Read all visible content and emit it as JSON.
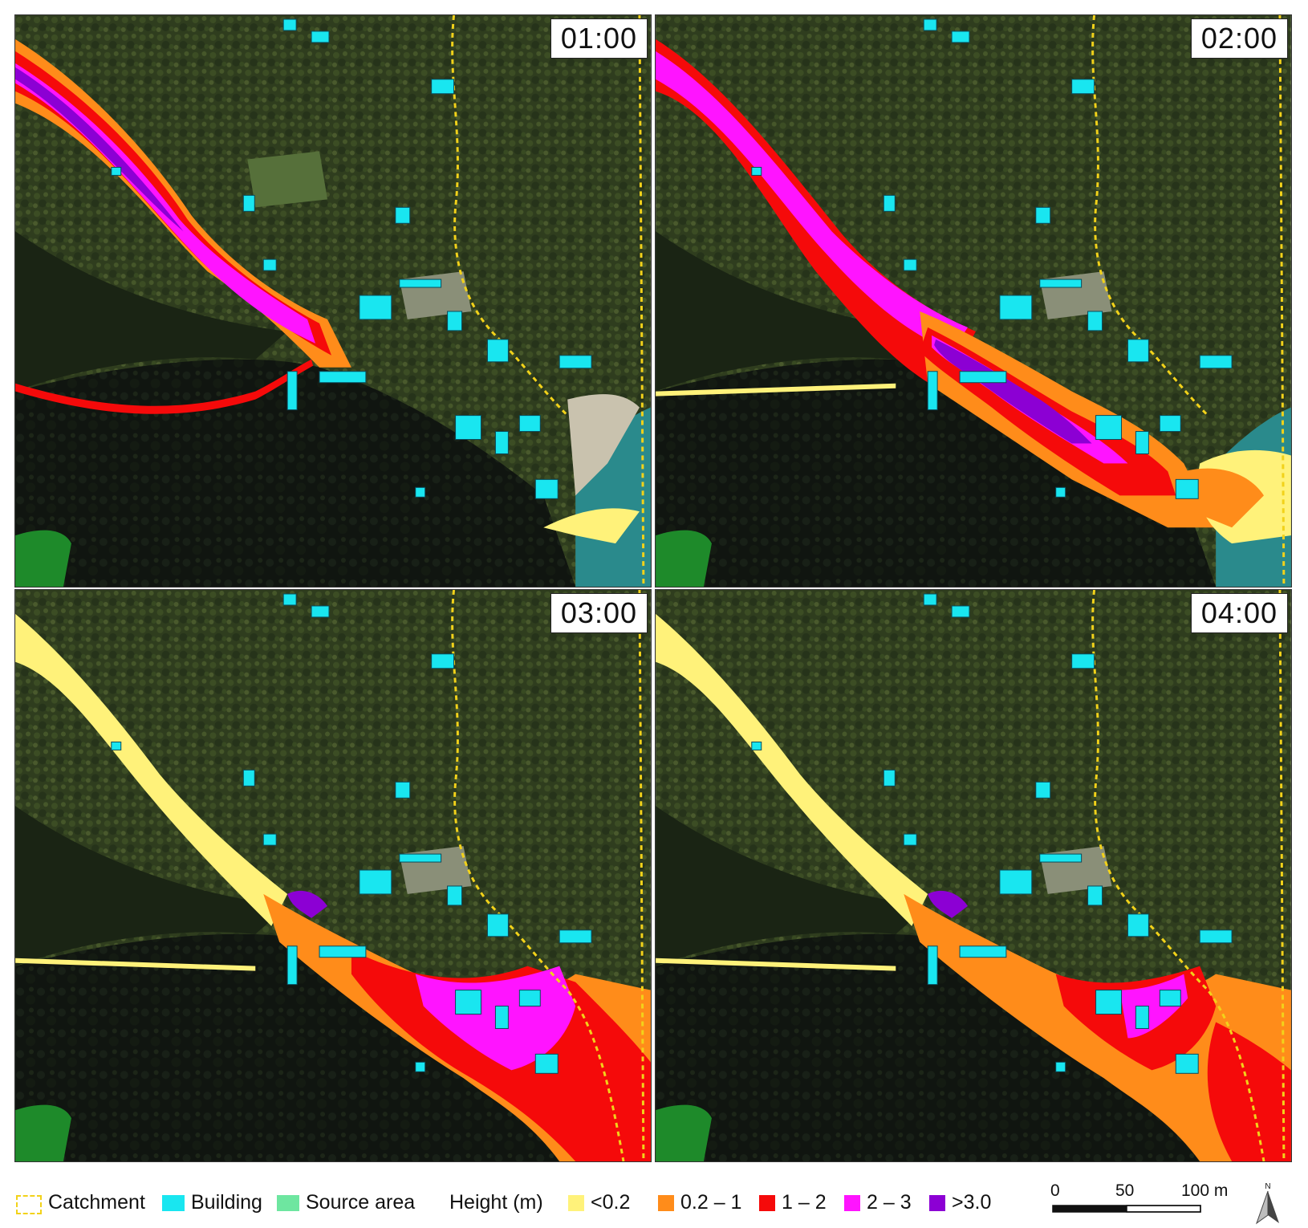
{
  "panels": [
    {
      "id": "p1",
      "time": "01:00"
    },
    {
      "id": "p2",
      "time": "02:00"
    },
    {
      "id": "p3",
      "time": "03:00"
    },
    {
      "id": "p4",
      "time": "04:00"
    }
  ],
  "legend": {
    "catchment": "Catchment",
    "building": "Building",
    "source_area": "Source area",
    "height_title": "Height (m)",
    "classes": [
      {
        "label": "<0.2",
        "color": "#fff27a"
      },
      {
        "label": "0.2 – 1",
        "color": "#ff8c1a"
      },
      {
        "label": "1 – 2",
        "color": "#f50a0a"
      },
      {
        "label": "2 – 3",
        "color": "#ff14ff"
      },
      {
        "label": ">3.0",
        "color": "#8c00d4"
      }
    ],
    "building_color": "#19e6f0",
    "source_color": "#6ee6a0",
    "catchment_color": "#f2d21a"
  },
  "scale_bar": {
    "ticks": [
      "0",
      "50",
      "100 m"
    ]
  },
  "north_arrow": {
    "label": "N"
  },
  "colors": {
    "forest": "#2b3a1c",
    "shadow": "#0e120b",
    "sea": "#2a8a8c",
    "beach": "#c9c2ae"
  }
}
